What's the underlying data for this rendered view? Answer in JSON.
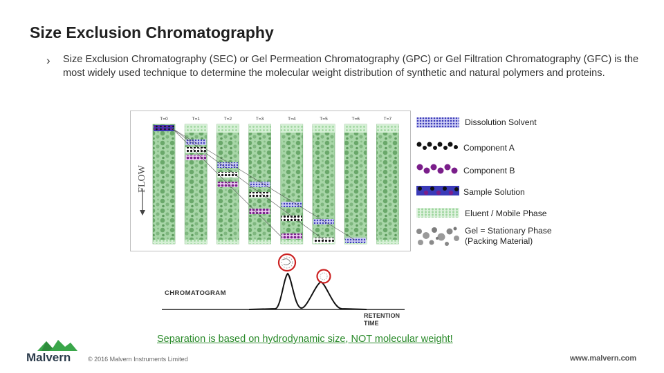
{
  "slide": {
    "title": "Size Exclusion Chromatography",
    "bullet": "Size Exclusion Chromatography (SEC) or Gel Permeation Chromatography (GPC) or Gel Filtration Chromatography (GFC) is the most widely used technique to determine the molecular weight distribution of synthetic and natural polymers and proteins.",
    "caption": "Separation is based on hydrodynamic size, NOT molecular weight!"
  },
  "diagram": {
    "flow_label": "FLOW",
    "columns": [
      "T=0",
      "T=1",
      "T=2",
      "T=3",
      "T=4",
      "T=5",
      "T=6",
      "T=7"
    ],
    "colors": {
      "gel": "#7fb77f",
      "eluent": "#b9e6b9",
      "solvent": "#3a3ab8",
      "component_a": "#111111",
      "component_b": "#7a1e8a"
    }
  },
  "legend": [
    {
      "label": "Dissolution Solvent"
    },
    {
      "label": "Component A"
    },
    {
      "label": "Component B"
    },
    {
      "label": "Sample Solution"
    },
    {
      "label": "Eluent / Mobile Phase"
    },
    {
      "label": "Gel = Stationary Phase"
    },
    {
      "label": "(Packing Material)"
    }
  ],
  "chromatogram": {
    "title": "CHROMATOGRAM",
    "axis_label_line1": "RETENTION",
    "axis_label_line2": "TIME"
  },
  "footer": {
    "logo": "Malvern",
    "copyright": "© 2016 Malvern Instruments Limited",
    "website": "www.malvern.com"
  }
}
